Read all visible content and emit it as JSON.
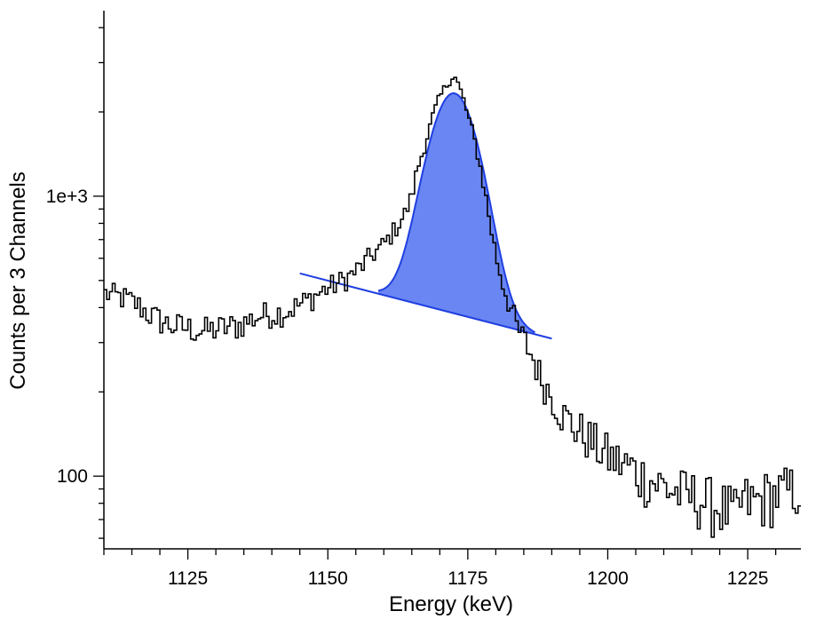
{
  "chart_data": {
    "type": "line",
    "title": "",
    "xlabel": "Energy (keV)",
    "ylabel": "Counts per 3 Channels",
    "x_scale": "linear",
    "y_scale": "log",
    "xlim": [
      1110,
      1234.5
    ],
    "ylim": [
      55,
      4600
    ],
    "x_ticks": [
      1125,
      1150,
      1175,
      1200,
      1225
    ],
    "x_tick_labels": [
      "1125",
      "1150",
      "1175",
      "1200",
      "1225"
    ],
    "y_ticks": [
      100,
      1000
    ],
    "y_tick_labels": [
      "100",
      "1e+3"
    ],
    "grid": false,
    "legend": "none",
    "colors": {
      "spectrum": "#000000",
      "fit_line": "#1f3fe0",
      "fit_fill": "#6a86f2"
    },
    "series": [
      {
        "kind": "spectrum-histogram",
        "x": [
          1110,
          1112,
          1114,
          1116,
          1118,
          1120,
          1122,
          1124,
          1126,
          1128,
          1130,
          1132,
          1134,
          1136,
          1138,
          1140,
          1142,
          1144,
          1146,
          1148,
          1150,
          1152,
          1154,
          1156,
          1158,
          1160,
          1162,
          1164,
          1165,
          1166,
          1167,
          1168,
          1169,
          1170,
          1171,
          1172,
          1172.5,
          1173,
          1174,
          1175,
          1176,
          1177,
          1178,
          1179,
          1180,
          1181,
          1182,
          1183,
          1184,
          1185,
          1186,
          1187,
          1188,
          1190,
          1192,
          1194,
          1196,
          1198,
          1200,
          1202,
          1204,
          1206,
          1208,
          1210,
          1212,
          1214,
          1216,
          1218,
          1220,
          1222,
          1223,
          1224,
          1226,
          1228,
          1230,
          1232,
          1234
        ],
        "y": [
          450,
          440,
          430,
          410,
          380,
          360,
          345,
          340,
          335,
          330,
          335,
          340,
          345,
          360,
          375,
          380,
          385,
          400,
          420,
          445,
          470,
          490,
          520,
          560,
          620,
          670,
          760,
          880,
          1000,
          1250,
          1450,
          1700,
          2000,
          2250,
          2450,
          2650,
          2700,
          2600,
          2300,
          1950,
          1650,
          1350,
          1050,
          800,
          620,
          510,
          440,
          380,
          330,
          310,
          280,
          255,
          225,
          195,
          165,
          150,
          140,
          128,
          118,
          112,
          108,
          100,
          96,
          92,
          88,
          85,
          84,
          80,
          78,
          74,
          70,
          82,
          80,
          84,
          86,
          88,
          90
        ]
      },
      {
        "kind": "fit-peak",
        "background": {
          "x1": 1145,
          "y1": 530,
          "x2": 1190,
          "y2": 310
        },
        "gaussian": {
          "center": 1172.5,
          "sigma": 4.2,
          "height": 1950,
          "start": 1159,
          "end": 1187
        }
      }
    ]
  }
}
